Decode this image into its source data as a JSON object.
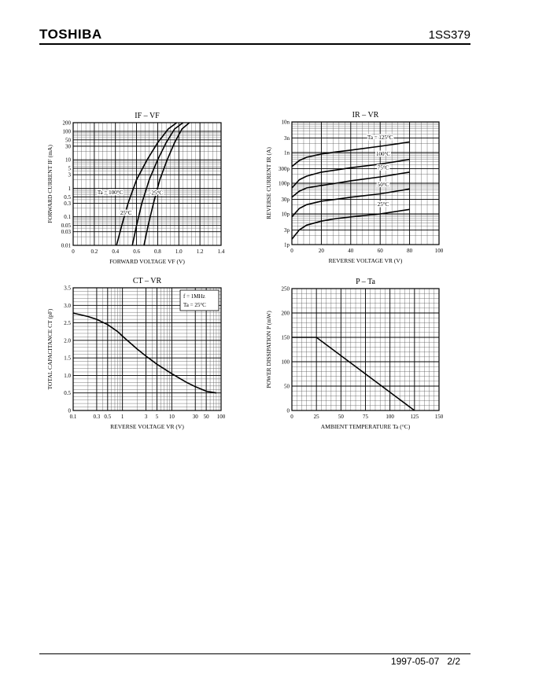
{
  "header": {
    "brand": "TOSHIBA",
    "part_number": "1SS379"
  },
  "footer": {
    "date": "1997-05-07",
    "page": "2/2"
  },
  "chart_data": [
    {
      "type": "line",
      "title": "IF – VF",
      "xlabel": "FORWARD VOLTAGE  VF  (V)",
      "ylabel": "FORWARD CURRENT  IF  (mA)",
      "xscale": "linear",
      "yscale": "log",
      "xlim": [
        0,
        1.4
      ],
      "ylim": [
        0.01,
        200
      ],
      "xticks": [
        0,
        0.2,
        0.4,
        0.6,
        0.8,
        1.0,
        1.2,
        1.4
      ],
      "xtick_labels": [
        "0",
        "0.2",
        "0.4",
        "0.6",
        "0.8",
        "1.0",
        "1.2",
        "1.4"
      ],
      "yticks": [
        0.01,
        0.03,
        0.05,
        0.1,
        0.3,
        0.5,
        1,
        3,
        5,
        10,
        30,
        50,
        100,
        200
      ],
      "ytick_labels": [
        "0.01",
        "0.03",
        "0.05",
        "0.1",
        "0.3",
        "0.5",
        "1",
        "3",
        "5",
        "10",
        "30",
        "50",
        "100",
        "200"
      ],
      "series": [
        {
          "name": "Ta = 100°C",
          "x": [
            0.41,
            0.46,
            0.52,
            0.6,
            0.7,
            0.8,
            0.9,
            0.98
          ],
          "y": [
            0.01,
            0.05,
            0.3,
            2,
            10,
            40,
            120,
            200
          ]
        },
        {
          "name": "25°C",
          "x": [
            0.56,
            0.6,
            0.65,
            0.72,
            0.8,
            0.88,
            0.96,
            1.04
          ],
          "y": [
            0.01,
            0.05,
            0.3,
            2,
            10,
            40,
            120,
            200
          ]
        },
        {
          "name": "−25°C",
          "x": [
            0.67,
            0.71,
            0.76,
            0.82,
            0.89,
            0.96,
            1.03,
            1.1
          ],
          "y": [
            0.01,
            0.05,
            0.3,
            2,
            10,
            40,
            120,
            200
          ]
        }
      ],
      "annotations": [
        "Ta = 100°C",
        "25°C",
        "−25°C"
      ]
    },
    {
      "type": "line",
      "title": "IR – VR",
      "xlabel": "REVERSE VOLTAGE  VR  (V)",
      "ylabel": "REVERSE CURRENT  IR  (A)",
      "xscale": "linear",
      "yscale": "log",
      "xlim": [
        0,
        100
      ],
      "ylim": [
        1e-12,
        1e-08
      ],
      "xticks": [
        0,
        20,
        40,
        60,
        80,
        100
      ],
      "xtick_labels": [
        "0",
        "20",
        "40",
        "60",
        "80",
        "100"
      ],
      "yticks": [
        1e-12,
        3e-12,
        1e-11,
        3e-11,
        1e-10,
        3e-10,
        1e-09,
        3e-09,
        1e-08
      ],
      "ytick_labels": [
        "1p",
        "3p",
        "10p",
        "30p",
        "100p",
        "300p",
        "1n",
        "3n",
        "10n"
      ],
      "series": [
        {
          "name": "Ta = 125°C",
          "x": [
            0,
            5,
            10,
            20,
            30,
            40,
            60,
            80
          ],
          "y": [
            3.5e-10,
            5.5e-10,
            7e-10,
            9e-10,
            1.05e-09,
            1.2e-09,
            1.6e-09,
            2.2e-09
          ]
        },
        {
          "name": "100°C",
          "x": [
            0,
            5,
            10,
            20,
            30,
            40,
            60,
            80
          ],
          "y": [
            7e-11,
            1.3e-10,
            1.7e-10,
            2.3e-10,
            2.7e-10,
            3.2e-10,
            4.2e-10,
            6e-10
          ]
        },
        {
          "name": "75°C",
          "x": [
            0,
            5,
            10,
            20,
            30,
            40,
            60,
            80
          ],
          "y": [
            3.5e-11,
            5.5e-11,
            7e-11,
            8.5e-11,
            1e-10,
            1.2e-10,
            1.6e-10,
            2.3e-10
          ]
        },
        {
          "name": "50°C",
          "x": [
            0,
            5,
            10,
            20,
            30,
            40,
            60,
            80
          ],
          "y": [
            8e-12,
            1.5e-11,
            2e-11,
            2.6e-11,
            3e-11,
            3.5e-11,
            4.5e-11,
            6.5e-11
          ]
        },
        {
          "name": "25°C",
          "x": [
            0,
            5,
            10,
            20,
            30,
            40,
            60,
            80
          ],
          "y": [
            1.5e-12,
            3e-12,
            4.3e-12,
            5.8e-12,
            7e-12,
            8e-12,
            1e-11,
            1.4e-11
          ]
        }
      ],
      "annotations": [
        "Ta = 125°C",
        "100°C",
        "75°C",
        "50°C",
        "25°C"
      ]
    },
    {
      "type": "line",
      "title": "CT – VR",
      "xlabel": "REVERSE VOLTAGE  VR  (V)",
      "ylabel": "TOTAL CAPACITANCE  CT  (pF)",
      "xscale": "log",
      "yscale": "linear",
      "xlim": [
        0.1,
        100
      ],
      "ylim": [
        0,
        3.5
      ],
      "xticks": [
        0.1,
        0.3,
        0.5,
        1,
        3,
        5,
        10,
        30,
        50,
        100
      ],
      "xtick_labels": [
        "0.1",
        "0.3",
        "0.5",
        "1",
        "3",
        "5",
        "10",
        "30",
        "50",
        "100"
      ],
      "yticks": [
        0,
        0.5,
        1.0,
        1.5,
        2.0,
        2.5,
        3.0,
        3.5
      ],
      "ytick_labels": [
        "0",
        "0.5",
        "1.0",
        "1.5",
        "2.0",
        "2.5",
        "3.0",
        "3.5"
      ],
      "series": [
        {
          "name": "CT",
          "x": [
            0.1,
            0.2,
            0.3,
            0.5,
            0.8,
            1,
            2,
            3,
            5,
            10,
            20,
            30,
            50,
            80
          ],
          "y": [
            2.78,
            2.68,
            2.6,
            2.45,
            2.25,
            2.12,
            1.75,
            1.55,
            1.32,
            1.05,
            0.8,
            0.68,
            0.55,
            0.5
          ]
        }
      ],
      "legend_box": [
        "f = 1MHz",
        "Ta = 25°C"
      ]
    },
    {
      "type": "line",
      "title": "P – Ta",
      "xlabel": "AMBIENT TEMPERATURE  Ta  (°C)",
      "ylabel": "POWER DISSIPATION  P  (mW)",
      "xscale": "linear",
      "yscale": "linear",
      "xlim": [
        0,
        150
      ],
      "ylim": [
        0,
        250
      ],
      "xticks": [
        0,
        25,
        50,
        75,
        100,
        125,
        150
      ],
      "xtick_labels": [
        "0",
        "25",
        "50",
        "75",
        "100",
        "125",
        "150"
      ],
      "yticks": [
        0,
        50,
        100,
        150,
        200,
        250
      ],
      "ytick_labels": [
        "0",
        "50",
        "100",
        "150",
        "200",
        "250"
      ],
      "series": [
        {
          "name": "P",
          "x": [
            0,
            25,
            125
          ],
          "y": [
            150,
            150,
            0
          ]
        }
      ]
    }
  ]
}
